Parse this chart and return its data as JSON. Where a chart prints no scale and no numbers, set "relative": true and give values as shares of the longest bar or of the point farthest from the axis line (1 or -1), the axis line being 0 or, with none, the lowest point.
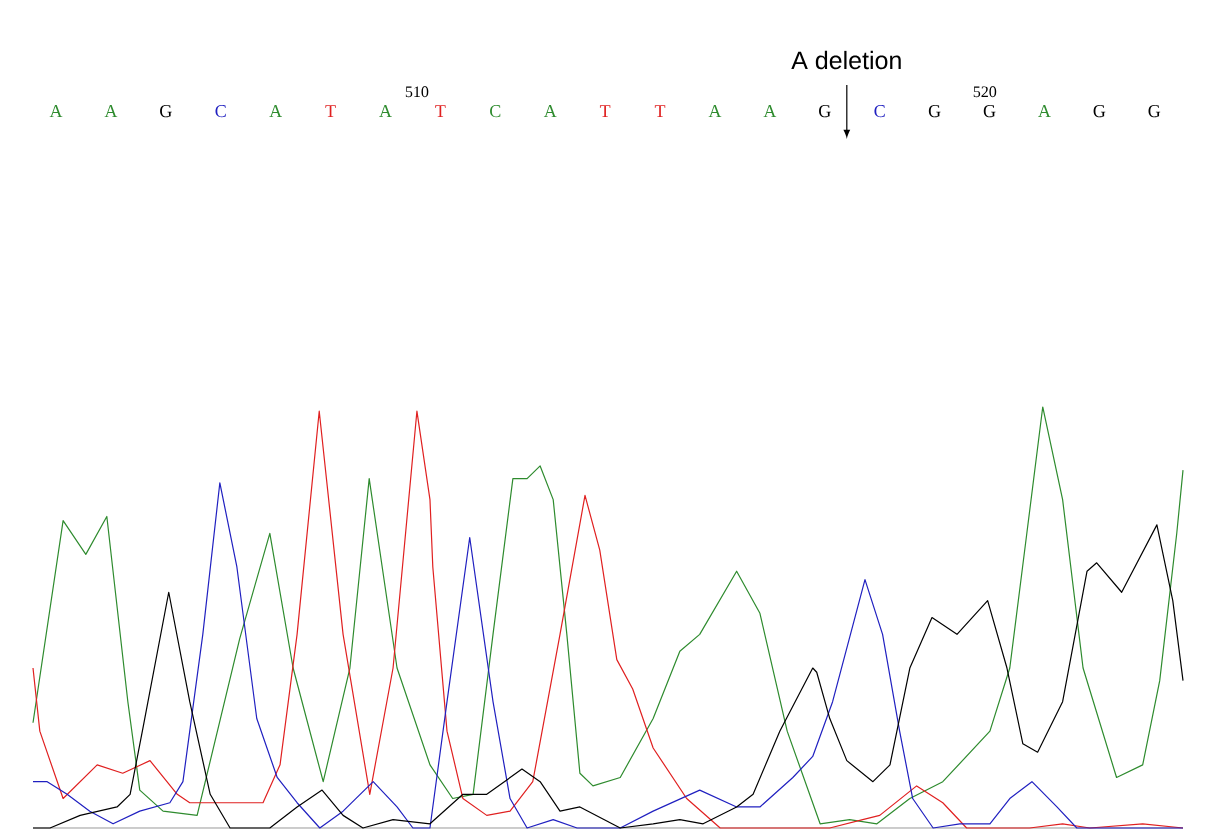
{
  "chart_data": {
    "type": "line",
    "relative": true,
    "tick_labels": "x",
    "xlim": [
      503.24,
      523.49
    ],
    "xticks": [
      510,
      520
    ],
    "annotations": [
      {
        "text": "A deletion",
        "x": 517.57
      },
      "A",
      "A",
      "G",
      "C",
      "A",
      "T",
      "A",
      "T",
      "C",
      "A",
      "T",
      "T",
      "A",
      "A",
      "G",
      "C",
      "G",
      "G",
      "A",
      "G",
      "G"
    ],
    "series": [
      {
        "color": "#2e8b2e",
        "x": [
          503.24,
          503.77,
          504.17,
          504.54,
          504.91,
          505.12,
          505.53,
          506.13,
          506.88,
          507.41,
          507.82,
          508.35,
          508.82,
          509.16,
          509.65,
          510.23,
          510.63,
          510.99,
          511.34,
          511.69,
          511.94,
          512.17,
          512.4,
          512.64,
          512.87,
          513.1,
          513.58,
          514.16,
          514.63,
          514.98,
          515.63,
          516.04,
          516.52,
          517.1,
          517.62,
          518.1,
          518.68,
          519.26,
          520.09,
          520.44,
          520.74,
          521.02,
          521.37,
          521.73,
          522.32,
          522.78,
          523.08,
          523.38,
          523.49
        ],
        "values": [
          0.25,
          0.73,
          0.65,
          0.74,
          0.3,
          0.09,
          0.04,
          0.03,
          0.45,
          0.7,
          0.38,
          0.11,
          0.38,
          0.83,
          0.38,
          0.15,
          0.07,
          0.08,
          0.46,
          0.83,
          0.83,
          0.86,
          0.78,
          0.46,
          0.13,
          0.1,
          0.12,
          0.26,
          0.42,
          0.46,
          0.61,
          0.51,
          0.23,
          0.01,
          0.02,
          0.01,
          0.07,
          0.11,
          0.23,
          0.38,
          0.7,
          1.0,
          0.78,
          0.38,
          0.12,
          0.15,
          0.35,
          0.7,
          0.85
        ]
      },
      {
        "color": "#e02020",
        "x": [
          503.24,
          503.36,
          503.77,
          504.37,
          504.82,
          505.3,
          505.78,
          506.0,
          507.29,
          507.59,
          507.89,
          508.28,
          508.7,
          509.17,
          509.58,
          510.0,
          510.23,
          510.28,
          510.53,
          510.81,
          511.23,
          511.64,
          512.04,
          512.52,
          512.96,
          513.22,
          513.52,
          513.8,
          514.16,
          514.75,
          515.34,
          517.27,
          517.85,
          518.15,
          518.8,
          519.26,
          519.68,
          520.79,
          521.37,
          521.85,
          522.78,
          523.49
        ],
        "values": [
          0.38,
          0.23,
          0.07,
          0.15,
          0.13,
          0.16,
          0.08,
          0.06,
          0.06,
          0.15,
          0.46,
          0.99,
          0.46,
          0.08,
          0.38,
          0.99,
          0.78,
          0.62,
          0.23,
          0.07,
          0.03,
          0.04,
          0.11,
          0.46,
          0.79,
          0.66,
          0.4,
          0.33,
          0.19,
          0.07,
          0,
          0,
          0.02,
          0.03,
          0.1,
          0.06,
          0,
          0,
          0.01,
          0,
          0.01,
          0
        ]
      },
      {
        "color": "#2020c0",
        "x": [
          503.24,
          503.49,
          503.84,
          504.24,
          504.65,
          505.12,
          505.65,
          505.88,
          506.23,
          506.53,
          506.83,
          507.18,
          507.54,
          507.89,
          508.29,
          508.7,
          509.23,
          509.65,
          509.93,
          510.23,
          510.53,
          510.93,
          511.34,
          511.64,
          511.94,
          512.4,
          512.82,
          513.58,
          514.16,
          514.98,
          515.63,
          516.04,
          516.62,
          516.97,
          517.32,
          517.89,
          518.2,
          518.5,
          518.73,
          519.09,
          519.56,
          520.09,
          520.44,
          520.83,
          521.27,
          521.62,
          522.03,
          523.49
        ],
        "values": [
          0.11,
          0.11,
          0.08,
          0.04,
          0.01,
          0.04,
          0.06,
          0.11,
          0.46,
          0.82,
          0.62,
          0.26,
          0.12,
          0.06,
          0,
          0.04,
          0.11,
          0.05,
          0,
          0,
          0.3,
          0.69,
          0.3,
          0.07,
          0,
          0.02,
          0,
          0,
          0.04,
          0.09,
          0.05,
          0.05,
          0.12,
          0.17,
          0.3,
          0.59,
          0.46,
          0.23,
          0.07,
          0,
          0.01,
          0.01,
          0.07,
          0.11,
          0.05,
          0,
          0,
          0
        ]
      },
      {
        "color": "#000000",
        "x": [
          503.24,
          503.54,
          504.07,
          504.72,
          504.95,
          505.18,
          505.63,
          506.0,
          506.36,
          506.71,
          507.41,
          507.89,
          508.33,
          508.7,
          509.05,
          509.58,
          510.23,
          510.81,
          511.23,
          511.85,
          512.17,
          512.52,
          512.87,
          513.58,
          514.16,
          514.63,
          515.04,
          515.63,
          515.92,
          516.39,
          516.97,
          517.04,
          517.27,
          517.57,
          518.03,
          518.33,
          518.68,
          519.07,
          519.51,
          520.05,
          520.39,
          520.67,
          520.93,
          521.37,
          521.8,
          521.97,
          522.41,
          523.03,
          523.31,
          523.49
        ],
        "values": [
          0,
          0,
          0.03,
          0.05,
          0.08,
          0.24,
          0.56,
          0.3,
          0.08,
          0,
          0,
          0.05,
          0.09,
          0.03,
          0,
          0.02,
          0.01,
          0.08,
          0.08,
          0.14,
          0.11,
          0.04,
          0.05,
          0,
          0.01,
          0.02,
          0.01,
          0.05,
          0.08,
          0.23,
          0.38,
          0.37,
          0.26,
          0.16,
          0.11,
          0.15,
          0.38,
          0.5,
          0.46,
          0.54,
          0.38,
          0.2,
          0.18,
          0.3,
          0.61,
          0.63,
          0.56,
          0.72,
          0.54,
          0.35
        ]
      }
    ]
  }
}
